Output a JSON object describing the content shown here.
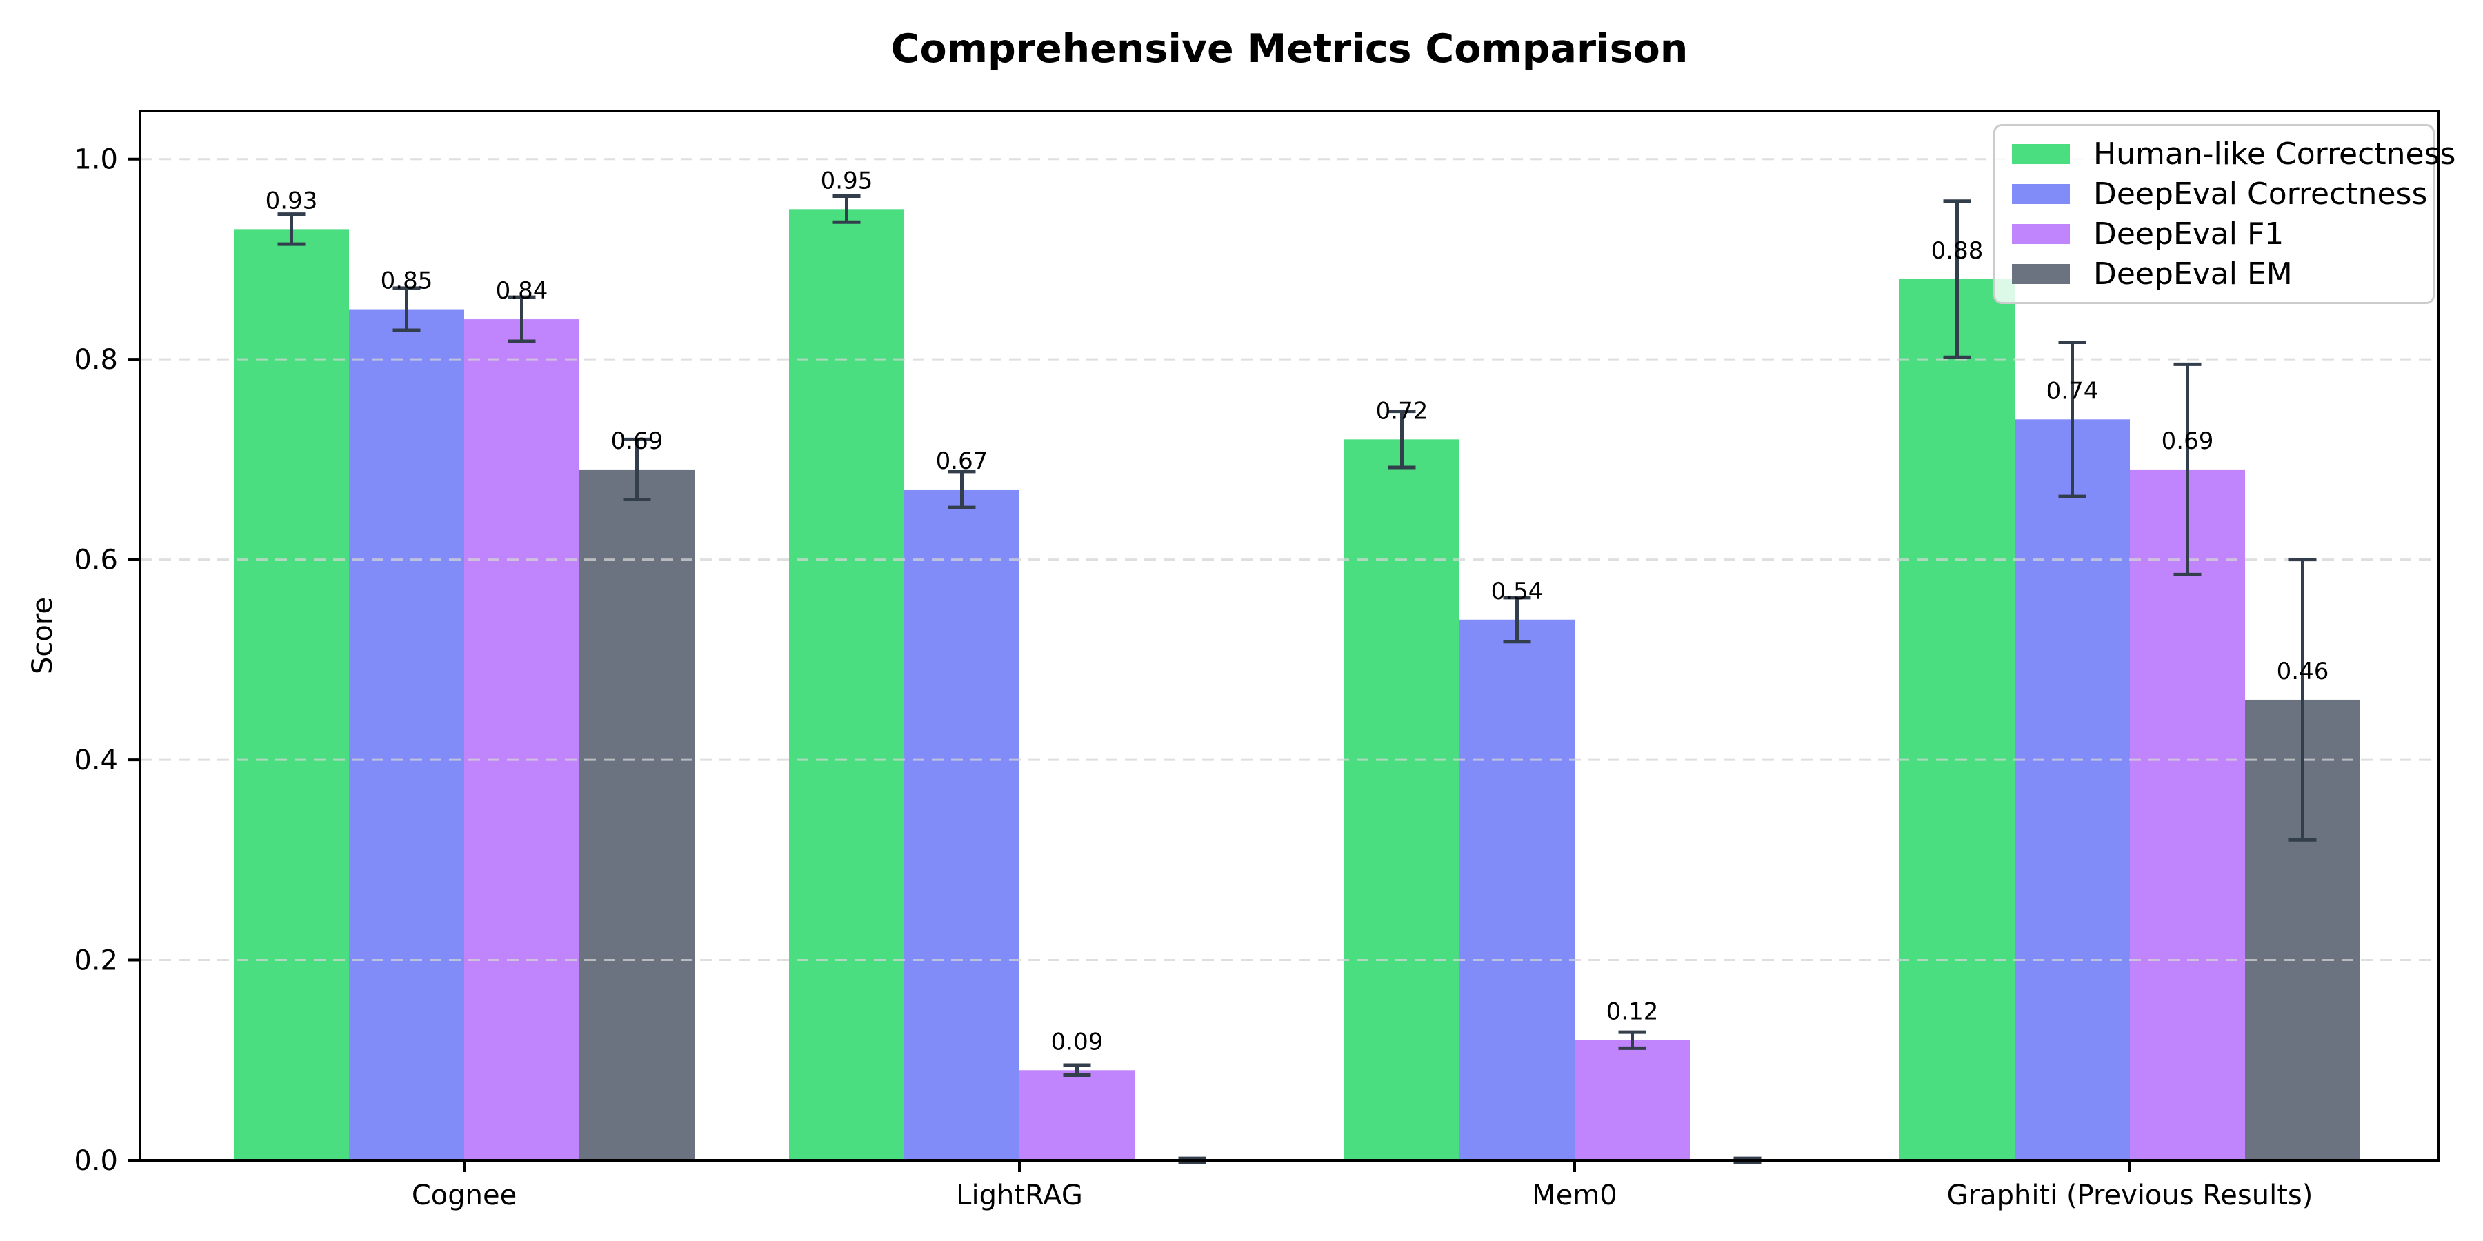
{
  "figure": {
    "background": "#ffffff"
  },
  "chart_data": {
    "type": "bar",
    "title": "Comprehensive Metrics Comparison",
    "ylabel": "Score",
    "xlabel": "",
    "categories": [
      "Cognee",
      "LightRAG",
      "Mem0",
      "Graphiti (Previous Results)"
    ],
    "series": [
      {
        "name": "Human-like Correctness",
        "color": "#4ade80",
        "values": [
          0.93,
          0.95,
          0.72,
          0.88
        ],
        "errors": [
          0.015,
          0.013,
          0.028,
          0.078
        ],
        "bar_labels": [
          "0.93",
          "0.95",
          "0.72",
          "0.88"
        ]
      },
      {
        "name": "DeepEval Correctness",
        "color": "#818cf8",
        "values": [
          0.85,
          0.67,
          0.54,
          0.74
        ],
        "errors": [
          0.021,
          0.018,
          0.022,
          0.077
        ],
        "bar_labels": [
          "0.85",
          "0.67",
          "0.54",
          "0.74"
        ]
      },
      {
        "name": "DeepEval F1",
        "color": "#c084fc",
        "values": [
          0.84,
          0.09,
          0.12,
          0.69
        ],
        "errors": [
          0.022,
          0.005,
          0.008,
          0.105
        ],
        "bar_labels": [
          "0.84",
          "0.09",
          "0.12",
          "0.69"
        ]
      },
      {
        "name": "DeepEval EM",
        "color": "#6b7280",
        "values": [
          0.69,
          0.0,
          0.0,
          0.46
        ],
        "errors": [
          0.03,
          0.002,
          0.002,
          0.14
        ],
        "bar_labels": [
          "0.69",
          null,
          null,
          "0.46"
        ]
      }
    ],
    "yticks": [
      0.0,
      0.2,
      0.4,
      0.6,
      0.8,
      1.0
    ],
    "ytick_labels": [
      "0.0",
      "0.2",
      "0.4",
      "0.6",
      "0.8",
      "1.0"
    ],
    "ylim": [
      0,
      1.048
    ],
    "grid": "dashed-horizontal",
    "legend_position": "upper-right",
    "colors": {
      "error_bar": "#333e4d",
      "grid": "#d4d4d4",
      "axis": "#000000",
      "text": "#000000",
      "legend_border": "#cccccc"
    }
  }
}
